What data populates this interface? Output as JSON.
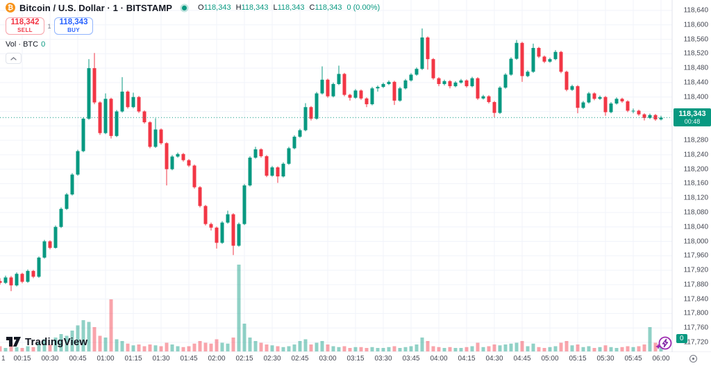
{
  "header": {
    "symbol_title": "Bitcoin / U.S. Dollar · 1 · BITSTAMP",
    "market_status": "open",
    "ohlc": {
      "o_label": "O",
      "o": "118,343",
      "h_label": "H",
      "h": "118,343",
      "l_label": "L",
      "l": "118,343",
      "c_label": "C",
      "c": "118,343",
      "change": "0 (0.00%)"
    },
    "sell_button": {
      "price": "118,342",
      "label": "SELL"
    },
    "buy_button": {
      "price": "118,343",
      "label": "BUY"
    },
    "spread": "1",
    "volume_legend": {
      "label": "Vol · BTC",
      "value": "0"
    }
  },
  "axis": {
    "first_time_label": "1",
    "last_price_badge": {
      "price": "118,343",
      "countdown": "00:48"
    },
    "volume_badge": "0"
  },
  "footer": {
    "logo_text": "TradingView"
  },
  "chart_data": {
    "type": "candlestick",
    "symbol": "BTCUSD",
    "exchange": "BITSTAMP",
    "interval_minutes": 1,
    "title": "Bitcoin / U.S. Dollar",
    "ylim": [
      117720,
      118640
    ],
    "price_ticks": [
      117720,
      117760,
      117800,
      117840,
      117880,
      117920,
      117960,
      118000,
      118040,
      118080,
      118120,
      118160,
      118200,
      118240,
      118280,
      118320,
      118360,
      118400,
      118440,
      118480,
      118520,
      118560,
      118600,
      118640
    ],
    "time_ticks": [
      "00:15",
      "00:30",
      "00:45",
      "01:00",
      "01:15",
      "01:30",
      "01:45",
      "02:00",
      "02:15",
      "02:30",
      "02:45",
      "03:00",
      "03:15",
      "03:30",
      "03:45",
      "04:00",
      "04:15",
      "04:30",
      "04:45",
      "05:00",
      "05:15",
      "05:30",
      "05:45",
      "06:00"
    ],
    "start_minute": 3,
    "step_minutes": 3,
    "last_price": 118343,
    "countdown": "00:48",
    "grid": true,
    "colors": {
      "up": "#089981",
      "down": "#f23645",
      "vol_up": "rgba(8,153,129,0.45)",
      "vol_down": "rgba(242,54,69,0.45)"
    },
    "candles": [
      [
        117890,
        117898,
        117880,
        117885
      ],
      [
        117885,
        117905,
        117882,
        117900
      ],
      [
        117900,
        117904,
        117862,
        117878
      ],
      [
        117878,
        117914,
        117875,
        117910
      ],
      [
        117910,
        117913,
        117884,
        117888
      ],
      [
        117888,
        117922,
        117885,
        117918
      ],
      [
        117918,
        117921,
        117898,
        117902
      ],
      [
        117902,
        117958,
        117899,
        117955
      ],
      [
        117955,
        118004,
        117952,
        118000
      ],
      [
        118000,
        118003,
        117978,
        117982
      ],
      [
        117982,
        118044,
        117980,
        118040
      ],
      [
        118040,
        118094,
        118037,
        118090
      ],
      [
        118090,
        118134,
        118087,
        118130
      ],
      [
        118130,
        118189,
        118127,
        118185
      ],
      [
        118185,
        118254,
        118182,
        118250
      ],
      [
        118250,
        118344,
        118247,
        118340
      ],
      [
        118340,
        118505,
        118337,
        118480
      ],
      [
        118480,
        118522,
        118380,
        118385
      ],
      [
        118385,
        118388,
        118295,
        118300
      ],
      [
        118300,
        118410,
        118297,
        118395
      ],
      [
        118395,
        118398,
        118285,
        118292
      ],
      [
        118292,
        118364,
        118289,
        118360
      ],
      [
        118360,
        118455,
        118357,
        118415
      ],
      [
        118415,
        118418,
        118368,
        118372
      ],
      [
        118372,
        118412,
        118369,
        118400
      ],
      [
        118400,
        118403,
        118356,
        118360
      ],
      [
        118360,
        118363,
        118326,
        118330
      ],
      [
        118330,
        118333,
        118258,
        118262
      ],
      [
        118262,
        118341,
        118259,
        118310
      ],
      [
        118310,
        118313,
        118268,
        118272
      ],
      [
        118272,
        118275,
        118155,
        118200
      ],
      [
        118200,
        118239,
        118197,
        118235
      ],
      [
        118235,
        118246,
        118232,
        118242
      ],
      [
        118242,
        118245,
        118221,
        118225
      ],
      [
        118225,
        118228,
        118206,
        118210
      ],
      [
        118210,
        118213,
        118146,
        118150
      ],
      [
        118150,
        118153,
        118094,
        118098
      ],
      [
        118098,
        118101,
        118044,
        118048
      ],
      [
        118048,
        118052,
        118030,
        118038
      ],
      [
        118038,
        118041,
        117980,
        117996
      ],
      [
        117996,
        118056,
        117993,
        118052
      ],
      [
        118052,
        118085,
        118049,
        118075
      ],
      [
        118075,
        118078,
        117962,
        117988
      ],
      [
        117988,
        118052,
        117985,
        118048
      ],
      [
        118048,
        118159,
        118045,
        118155
      ],
      [
        118155,
        118236,
        118152,
        118232
      ],
      [
        118232,
        118262,
        118229,
        118255
      ],
      [
        118255,
        118258,
        118232,
        118236
      ],
      [
        118236,
        118239,
        118178,
        118182
      ],
      [
        118182,
        118209,
        118179,
        118205
      ],
      [
        118205,
        118208,
        118162,
        118180
      ],
      [
        118180,
        118219,
        118177,
        118215
      ],
      [
        118215,
        118262,
        118212,
        118258
      ],
      [
        118258,
        118294,
        118255,
        118290
      ],
      [
        118290,
        118312,
        118287,
        118308
      ],
      [
        118308,
        118383,
        118305,
        118372
      ],
      [
        118372,
        118375,
        118335,
        118340
      ],
      [
        118340,
        118414,
        118337,
        118410
      ],
      [
        118410,
        118485,
        118407,
        118448
      ],
      [
        118448,
        118451,
        118398,
        118402
      ],
      [
        118402,
        118440,
        118399,
        118436
      ],
      [
        118436,
        118487,
        118433,
        118464
      ],
      [
        118464,
        118467,
        118402,
        118406
      ],
      [
        118406,
        118409,
        118390,
        118398
      ],
      [
        118398,
        118422,
        118395,
        118418
      ],
      [
        118418,
        118421,
        118392,
        118396
      ],
      [
        118396,
        118399,
        118372,
        118380
      ],
      [
        118380,
        118428,
        118377,
        118424
      ],
      [
        118424,
        118432,
        118415,
        118428
      ],
      [
        118428,
        118440,
        118425,
        118436
      ],
      [
        118436,
        118446,
        118433,
        118442
      ],
      [
        118442,
        118445,
        118378,
        118390
      ],
      [
        118390,
        118428,
        118387,
        118424
      ],
      [
        118424,
        118450,
        118421,
        118446
      ],
      [
        118446,
        118466,
        118443,
        118462
      ],
      [
        118462,
        118482,
        118459,
        118478
      ],
      [
        118478,
        118590,
        118475,
        118565
      ],
      [
        118565,
        118568,
        118476,
        118505
      ],
      [
        118505,
        118508,
        118448,
        118452
      ],
      [
        118452,
        118455,
        118430,
        118436
      ],
      [
        118436,
        118448,
        118432,
        118444
      ],
      [
        118444,
        118447,
        118424,
        118430
      ],
      [
        118430,
        118444,
        118427,
        118440
      ],
      [
        118440,
        118450,
        118437,
        118446
      ],
      [
        118446,
        118449,
        118426,
        118430
      ],
      [
        118430,
        118456,
        118427,
        118452
      ],
      [
        118452,
        118455,
        118392,
        118396
      ],
      [
        118396,
        118406,
        118393,
        118402
      ],
      [
        118402,
        118405,
        118382,
        118386
      ],
      [
        118386,
        118389,
        118344,
        118356
      ],
      [
        118356,
        118430,
        118353,
        118426
      ],
      [
        118426,
        118466,
        118423,
        118462
      ],
      [
        118462,
        118510,
        118459,
        118506
      ],
      [
        118506,
        118558,
        118503,
        118550
      ],
      [
        118550,
        118553,
        118442,
        118458
      ],
      [
        118458,
        118474,
        118455,
        118470
      ],
      [
        118470,
        118548,
        118467,
        118536
      ],
      [
        118536,
        118539,
        118508,
        118512
      ],
      [
        118512,
        118515,
        118494,
        118498
      ],
      [
        118498,
        118509,
        118495,
        118505
      ],
      [
        118505,
        118530,
        118502,
        118525
      ],
      [
        118525,
        118528,
        118466,
        118470
      ],
      [
        118470,
        118473,
        118416,
        118420
      ],
      [
        118420,
        118434,
        118417,
        118430
      ],
      [
        118430,
        118433,
        118355,
        118370
      ],
      [
        118370,
        118389,
        118367,
        118385
      ],
      [
        118385,
        118414,
        118382,
        118410
      ],
      [
        118410,
        118413,
        118391,
        118395
      ],
      [
        118395,
        118404,
        118392,
        118400
      ],
      [
        118400,
        118403,
        118348,
        118358
      ],
      [
        118358,
        118386,
        118355,
        118382
      ],
      [
        118382,
        118399,
        118379,
        118395
      ],
      [
        118395,
        118398,
        118384,
        118388
      ],
      [
        118388,
        118391,
        118358,
        118362
      ],
      [
        118362,
        118368,
        118355,
        118362
      ],
      [
        118362,
        118365,
        118348,
        118352
      ],
      [
        118352,
        118355,
        118335,
        118342
      ],
      [
        118342,
        118354,
        118339,
        118350
      ],
      [
        118350,
        118353,
        118334,
        118338
      ],
      [
        118338,
        118348,
        118335,
        118343
      ]
    ],
    "volumes": [
      6,
      4,
      9,
      5,
      4,
      6,
      5,
      10,
      14,
      8,
      16,
      20,
      18,
      24,
      30,
      36,
      34,
      28,
      18,
      16,
      60,
      14,
      12,
      9,
      7,
      8,
      6,
      8,
      7,
      6,
      10,
      8,
      6,
      5,
      6,
      9,
      12,
      10,
      9,
      14,
      10,
      9,
      16,
      100,
      32,
      16,
      12,
      10,
      8,
      7,
      6,
      5,
      6,
      8,
      12,
      14,
      8,
      10,
      12,
      8,
      6,
      5,
      6,
      4,
      5,
      5,
      4,
      5,
      4,
      4,
      5,
      6,
      4,
      5,
      6,
      8,
      16,
      12,
      6,
      5,
      4,
      5,
      4,
      4,
      5,
      6,
      10,
      5,
      6,
      8,
      7,
      8,
      9,
      10,
      12,
      6,
      9,
      5,
      4,
      5,
      6,
      10,
      12,
      7,
      8,
      5,
      6,
      4,
      5,
      7,
      5,
      4,
      5,
      6,
      5,
      6,
      8,
      28,
      10,
      6
    ]
  }
}
